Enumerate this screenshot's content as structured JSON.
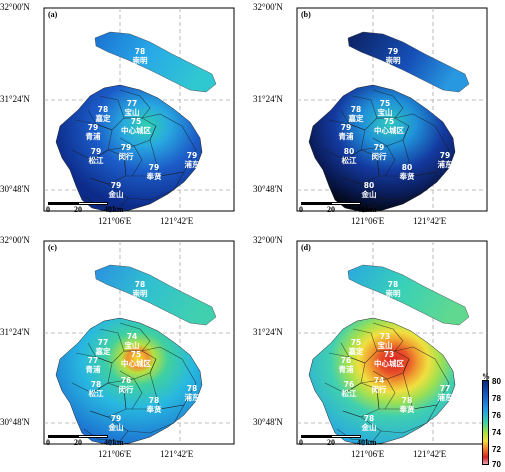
{
  "panels": [
    {
      "label": "(a)",
      "y_top": "32°00'N",
      "y_mid": "31°24'N",
      "y_bot": "30°48'N",
      "x_left": "121°06'E",
      "x_right": "121°42'E",
      "scale": [
        "0",
        "20",
        "40"
      ],
      "scale_unit": "km",
      "cities": {
        "chongming_val": "78",
        "chongming": "崇明",
        "jiading_val": "78",
        "jiading": "嘉定",
        "baoshan_val": "77",
        "baoshan": "宝山",
        "center_val": "75",
        "center": "中心城区",
        "qingpu_val": "79",
        "qingpu": "青浦",
        "minhang_val": "79",
        "minhang": "闵行",
        "songjiang_val": "79",
        "songjiang": "松江",
        "pudong_val": "79",
        "pudong": "浦东",
        "fengxian_val": "79",
        "fengxian": "奉贤",
        "jinshan_val": "79",
        "jinshan": "金山"
      }
    },
    {
      "label": "(b)",
      "y_top": "32°00'N",
      "y_mid": "31°24'N",
      "y_bot": "30°48'N",
      "x_left": "121°06'E",
      "x_right": "121°42'E",
      "scale": [
        "0",
        "20",
        "40"
      ],
      "scale_unit": "km",
      "cities": {
        "chongming_val": "79",
        "chongming": "崇明",
        "jiading_val": "78",
        "jiading": "嘉定",
        "baoshan_val": "75",
        "baoshan": "宝山",
        "center_val": "75",
        "center": "中心城区",
        "qingpu_val": "79",
        "qingpu": "青浦",
        "minhang_val": "79",
        "minhang": "闵行",
        "songjiang_val": "80",
        "songjiang": "松江",
        "pudong_val": "79",
        "pudong": "浦东",
        "fengxian_val": "80",
        "fengxian": "奉贤",
        "jinshan_val": "80",
        "jinshan": "金山"
      }
    },
    {
      "label": "(c)",
      "y_top": "32°00'N",
      "y_mid": "31°24'N",
      "y_bot": "30°48'N",
      "x_left": "121°06'E",
      "x_right": "121°42'E",
      "scale": [
        "0",
        "20",
        "40"
      ],
      "scale_unit": "km",
      "cities": {
        "chongming_val": "78",
        "chongming": "崇明",
        "jiading_val": "77",
        "jiading": "嘉定",
        "baoshan_val": "74",
        "baoshan": "宝山",
        "center_val": "75",
        "center": "中心城区",
        "qingpu_val": "77",
        "qingpu": "青浦",
        "minhang_val": "76",
        "minhang": "闵行",
        "songjiang_val": "78",
        "songjiang": "松江",
        "pudong_val": "78",
        "pudong": "浦东",
        "fengxian_val": "78",
        "fengxian": "奉贤",
        "jinshan_val": "79",
        "jinshan": "金山"
      }
    },
    {
      "label": "(d)",
      "y_top": "32°00'N",
      "y_mid": "31°24'N",
      "y_bot": "30°48'N",
      "x_left": "121°06'E",
      "x_right": "121°42'E",
      "scale": [
        "0",
        "20",
        "40"
      ],
      "scale_unit": "km",
      "cities": {
        "chongming_val": "78",
        "chongming": "崇明",
        "jiading_val": "75",
        "jiading": "嘉定",
        "baoshan_val": "73",
        "baoshan": "宝山",
        "center_val": "73",
        "center": "中心城区",
        "qingpu_val": "76",
        "qingpu": "青浦",
        "minhang_val": "74",
        "minhang": "闵行",
        "songjiang_val": "76",
        "songjiang": "松江",
        "pudong_val": "77",
        "pudong": "浦东",
        "fengxian_val": "78",
        "fengxian": "奉贤",
        "jinshan_val": "78",
        "jinshan": "金山"
      }
    }
  ],
  "legend": {
    "unit": "%",
    "ticks": [
      "80",
      "78",
      "76",
      "74",
      "72",
      "70"
    ]
  }
}
